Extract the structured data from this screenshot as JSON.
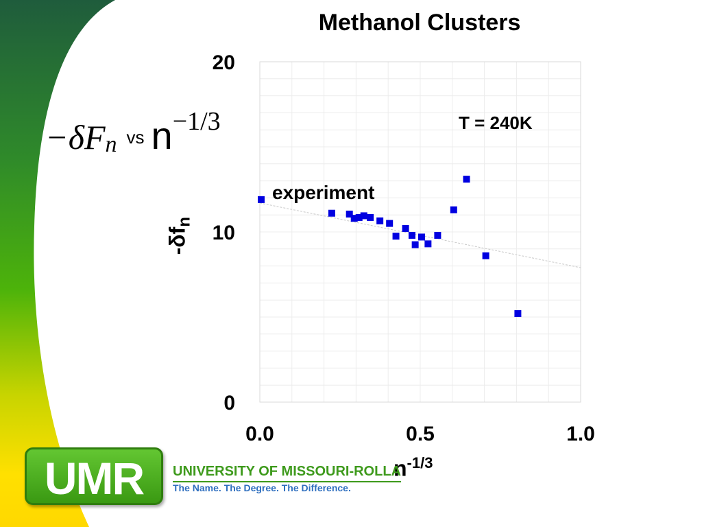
{
  "slide": {
    "title": "Methanol Clusters",
    "formula": {
      "lhs": "−δF",
      "lhs_sub": "n",
      "vs": "vs",
      "n": "n",
      "exponent": "−1/3"
    }
  },
  "chart_data": {
    "type": "scatter",
    "xlabel": "n-1/3",
    "xlabel_base": "n",
    "xlabel_sup": "-1/3",
    "ylabel": "-δfn",
    "ylabel_base": "-δf",
    "ylabel_sub": "n",
    "xlim": [
      0,
      1.0
    ],
    "ylim": [
      0,
      20
    ],
    "x_ticks": [
      "0.0",
      "0.5",
      "1.0"
    ],
    "y_ticks": [
      "0",
      "10",
      "20"
    ],
    "grid": true,
    "annotations": [
      "T = 240K",
      "experiment"
    ],
    "marker_color": "#0000e0",
    "series": [
      {
        "points": [
          [
            0.0,
            11.9
          ],
          [
            0.22,
            11.1
          ],
          [
            0.275,
            11.05
          ],
          [
            0.29,
            10.8
          ],
          [
            0.305,
            10.85
          ],
          [
            0.32,
            10.95
          ],
          [
            0.34,
            10.85
          ],
          [
            0.37,
            10.65
          ],
          [
            0.4,
            10.5
          ],
          [
            0.42,
            9.75
          ],
          [
            0.45,
            10.2
          ],
          [
            0.47,
            9.8
          ],
          [
            0.48,
            9.25
          ],
          [
            0.5,
            9.7
          ],
          [
            0.52,
            9.3
          ],
          [
            0.55,
            9.8
          ],
          [
            0.6,
            11.3
          ],
          [
            0.64,
            13.1
          ],
          [
            0.7,
            8.6
          ],
          [
            0.8,
            5.2
          ]
        ]
      }
    ],
    "fit_line": {
      "x": [
        0.0,
        1.0
      ],
      "y": [
        11.7,
        7.9
      ]
    }
  },
  "footer": {
    "logo_text": "UMR",
    "university": "UNIVERSITY OF MISSOURI-ROLLA",
    "tagline": "The Name. The Degree. The Difference."
  },
  "theme": {
    "green_dark": "#1f5f3a",
    "green": "#3ea80f",
    "yellow": "#ffe000"
  }
}
